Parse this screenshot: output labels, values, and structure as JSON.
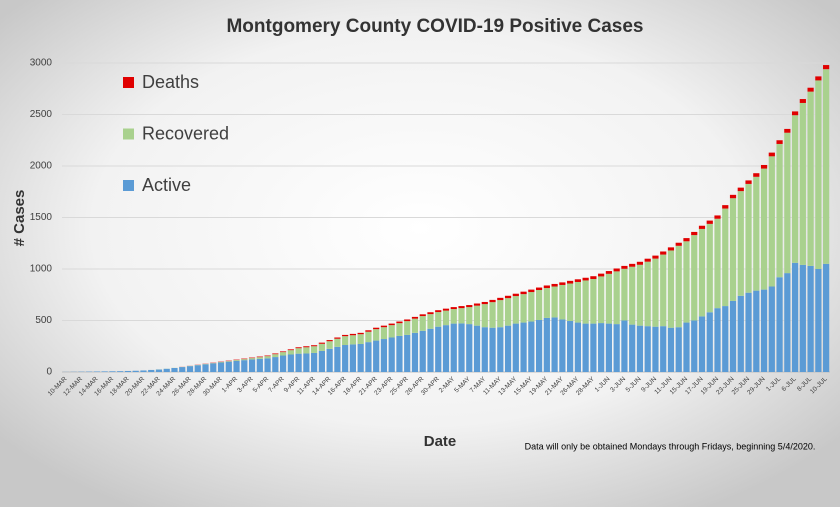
{
  "chart_data": {
    "type": "stacked_bar",
    "title": "Montgomery County COVID-19 Positive Cases",
    "x_label": "Date",
    "y_label": "# Cases",
    "annotation": "Data will only be obtained Mondays through Fridays, beginning 5/4/2020.",
    "categories": [
      "10-MAR",
      null,
      "12-MAR",
      null,
      "14-MAR",
      null,
      "16-MAR",
      null,
      "18-MAR",
      null,
      "20-MAR",
      null,
      "22-MAR",
      null,
      "24-MAR",
      null,
      "26-MAR",
      null,
      "28-MAR",
      null,
      "30-MAR",
      null,
      "1-APR",
      null,
      "3-APR",
      null,
      "5-APR",
      null,
      "7-APR",
      null,
      "9-APR",
      null,
      "11-APR",
      null,
      "14-APR",
      null,
      "16-APR",
      null,
      "18-APR",
      null,
      "21-APR",
      null,
      "23-APR",
      null,
      "25-APR",
      null,
      "28-APR",
      null,
      "30-APR",
      null,
      "2-MAY",
      null,
      "5-MAY",
      null,
      "7-MAY",
      null,
      "11-MAY",
      null,
      "13-MAY",
      null,
      "15-MAY",
      null,
      "19-MAY",
      null,
      "21-MAY",
      null,
      "26-MAY",
      null,
      "28-MAY",
      null,
      "1-JUN",
      null,
      "3-JUN",
      null,
      "5-JUN",
      null,
      "9-JUN",
      null,
      "11-JUN",
      null,
      "15-JUN",
      null,
      "17-JUN",
      null,
      "19-JUN",
      null,
      "23-JUN",
      null,
      "25-JUN",
      null,
      "29-JUN",
      null,
      "1-JUL",
      null,
      "6-JUL",
      null,
      "8-JUL",
      null,
      "10-JUL"
    ],
    "series": [
      {
        "name": "Active",
        "color": "#5b9bd5",
        "values": [
          1,
          2,
          3,
          4,
          5,
          6,
          7,
          8,
          10,
          12,
          15,
          20,
          24,
          31,
          39,
          48,
          57,
          66,
          75,
          84,
          92,
          100,
          108,
          115,
          122,
          128,
          133,
          145,
          160,
          170,
          178,
          180,
          185,
          205,
          225,
          245,
          262,
          268,
          272,
          290,
          305,
          320,
          335,
          350,
          360,
          380,
          400,
          420,
          440,
          455,
          470,
          472,
          465,
          450,
          435,
          430,
          435,
          450,
          470,
          480,
          490,
          505,
          525,
          530,
          510,
          495,
          480,
          470,
          470,
          475,
          470,
          465,
          500,
          460,
          450,
          445,
          440,
          445,
          430,
          435,
          480,
          500,
          540,
          580,
          620,
          640,
          690,
          740,
          770,
          790,
          800,
          830,
          920,
          960,
          1060,
          1040,
          1030,
          1000,
          1050
        ]
      },
      {
        "name": "Recovered",
        "color": "#a9d18e",
        "values": [
          0,
          0,
          0,
          0,
          0,
          0,
          0,
          0,
          0,
          0,
          0,
          0,
          1,
          1,
          1,
          1,
          2,
          2,
          3,
          3,
          5,
          6,
          8,
          10,
          13,
          16,
          21,
          28,
          33,
          42,
          53,
          60,
          65,
          69,
          74,
          78,
          86,
          89,
          95,
          101,
          111,
          115,
          120,
          124,
          134,
          138,
          143,
          142,
          142,
          141,
          141,
          148,
          165,
          194,
          224,
          248,
          263,
          267,
          267,
          276,
          286,
          291,
          290,
          300,
          335,
          364,
          394,
          419,
          433,
          453,
          483,
          512,
          502,
          562,
          591,
          626,
          661,
          695,
          750,
          790,
          789,
          829,
          849,
          858,
          868,
          947,
          997,
          1016,
          1056,
          1105,
          1175,
          1264,
          1294,
          1363,
          1433,
          1572,
          1692,
          1831,
          1890
        ]
      },
      {
        "name": "Deaths",
        "color": "#e00000",
        "values": [
          0,
          0,
          0,
          0,
          0,
          0,
          0,
          0,
          0,
          0,
          0,
          0,
          0,
          0,
          0,
          1,
          1,
          2,
          2,
          3,
          3,
          4,
          4,
          5,
          5,
          6,
          6,
          7,
          7,
          8,
          9,
          10,
          10,
          11,
          11,
          12,
          12,
          13,
          13,
          14,
          14,
          15,
          15,
          16,
          16,
          17,
          17,
          18,
          18,
          19,
          19,
          20,
          20,
          21,
          21,
          22,
          22,
          23,
          23,
          24,
          24,
          24,
          25,
          25,
          25,
          26,
          26,
          26,
          27,
          27,
          27,
          28,
          28,
          28,
          29,
          29,
          29,
          30,
          30,
          30,
          31,
          31,
          31,
          32,
          32,
          33,
          33,
          34,
          34,
          35,
          35,
          36,
          36,
          37,
          37,
          38,
          38,
          39,
          40
        ]
      }
    ],
    "ylim": [
      0,
      3000
    ],
    "yticks": [
      0,
      500,
      1000,
      1500,
      2000,
      2500,
      3000
    ],
    "grid": true,
    "legend": "upper left"
  }
}
